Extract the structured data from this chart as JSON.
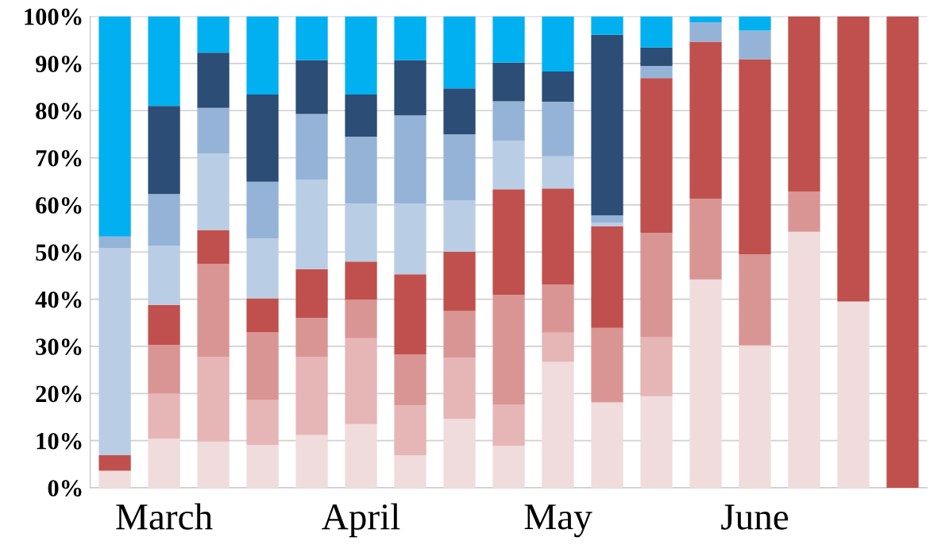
{
  "chart_data": {
    "type": "bar",
    "stacked": true,
    "categories": [
      null,
      "March",
      null,
      null,
      null,
      "April",
      null,
      null,
      null,
      "May",
      null,
      null,
      null,
      "June",
      null,
      null,
      null
    ],
    "series": [
      {
        "color": "#f0dcdc",
        "values": [
          3.6,
          10.4,
          9.8,
          9.1,
          11.2,
          13.5,
          6.9,
          14.6,
          8.9,
          26.7,
          18.1,
          19.4,
          44.2,
          30.2,
          54.3,
          39.5,
          0
        ]
      },
      {
        "color": "#e6b5b5",
        "values": [
          0,
          9.6,
          18.0,
          9.6,
          16.6,
          18.2,
          10.6,
          13.0,
          8.8,
          6.2,
          0,
          12.6,
          0,
          0,
          0,
          0,
          0
        ]
      },
      {
        "color": "#d99594",
        "values": [
          0,
          10.3,
          19.7,
          14.3,
          8.2,
          8.2,
          10.8,
          9.9,
          23.2,
          10.2,
          15.8,
          22.1,
          17.1,
          19.3,
          8.5,
          0,
          0
        ]
      },
      {
        "color": "#c0504d",
        "values": [
          3.3,
          8.5,
          7.2,
          7.2,
          10.4,
          8.1,
          17.0,
          12.6,
          22.4,
          20.4,
          21.6,
          32.8,
          33.3,
          41.4,
          37.2,
          60.5,
          100
        ]
      },
      {
        "color": "#b9cde5",
        "values": [
          43.9,
          12.5,
          16.2,
          12.7,
          19.0,
          12.3,
          15.0,
          10.8,
          10.3,
          6.8,
          0.7,
          0,
          0,
          0,
          0,
          0,
          0
        ]
      },
      {
        "color": "#95b3d7",
        "values": [
          2.5,
          11.0,
          9.7,
          12.0,
          13.9,
          14.2,
          18.7,
          14.1,
          8.4,
          11.6,
          1.6,
          2.6,
          4.1,
          6.1,
          0,
          0,
          0
        ]
      },
      {
        "color": "#2c4d75",
        "values": [
          0,
          18.7,
          11.7,
          18.5,
          11.4,
          8.9,
          11.7,
          9.7,
          8.2,
          6.4,
          38.3,
          3.9,
          0,
          0,
          0,
          0,
          0
        ]
      },
      {
        "color": "#00b0f0",
        "values": [
          46.7,
          19.0,
          7.7,
          16.6,
          9.3,
          16.6,
          9.3,
          15.3,
          9.8,
          11.7,
          3.9,
          6.6,
          1.3,
          3.0,
          0,
          0,
          0
        ]
      }
    ],
    "ylim": [
      0,
      100
    ],
    "yticks": [
      {
        "value": 0,
        "label": "0%"
      },
      {
        "value": 10,
        "label": "10%"
      },
      {
        "value": 20,
        "label": "20%"
      },
      {
        "value": 30,
        "label": "30%"
      },
      {
        "value": 40,
        "label": "40%"
      },
      {
        "value": 50,
        "label": "50%"
      },
      {
        "value": 60,
        "label": "60%"
      },
      {
        "value": 70,
        "label": "70%"
      },
      {
        "value": 80,
        "label": "80%"
      },
      {
        "value": 90,
        "label": "90%"
      },
      {
        "value": 100,
        "label": "100%"
      }
    ],
    "grid": "y"
  }
}
